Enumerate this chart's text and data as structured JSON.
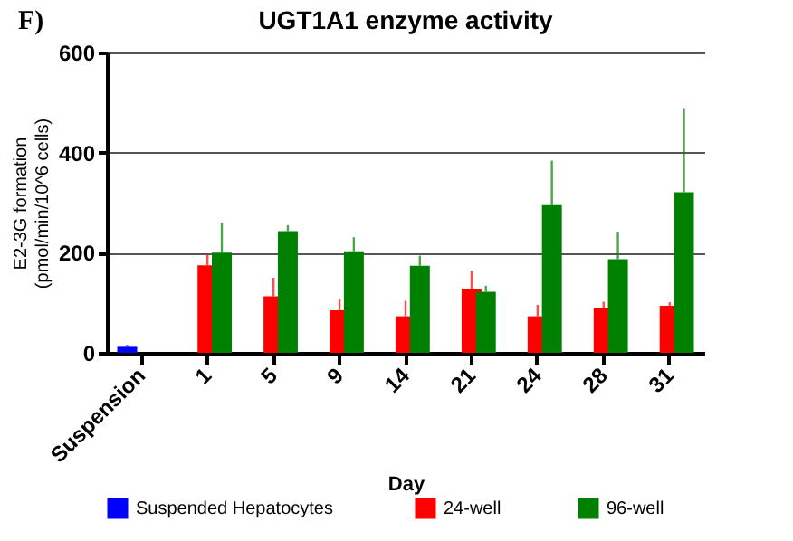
{
  "chart_data": {
    "type": "bar",
    "title": "UGT1A1 enzyme activity",
    "xlabel": "Day",
    "ylabel": "E2-3G formation\n(pmol/min/10^6 cells)",
    "annotations": [
      "F)"
    ],
    "categories": [
      "Suspension",
      "1",
      "5",
      "9",
      "14",
      "21",
      "24",
      "28",
      "31"
    ],
    "series": [
      {
        "name": "Suspended  Hepatocytes",
        "color": "#0000ff",
        "values": [
          12,
          null,
          null,
          null,
          null,
          null,
          null,
          null,
          null
        ],
        "errors": [
          [
            12,
            16
          ],
          null,
          null,
          null,
          null,
          null,
          null,
          null,
          null
        ]
      },
      {
        "name": "24-well",
        "color": "#ff0000",
        "values": [
          null,
          175,
          113,
          85,
          73,
          128,
          73,
          90,
          94
        ],
        "errors": [
          null,
          [
            175,
            196
          ],
          [
            113,
            150
          ],
          [
            85,
            108
          ],
          [
            73,
            104
          ],
          [
            128,
            164
          ],
          [
            73,
            96
          ],
          [
            90,
            102
          ],
          [
            94,
            101
          ]
        ]
      },
      {
        "name": "96-well",
        "color": "#008000",
        "values": [
          null,
          200,
          243,
          203,
          174,
          122,
          295,
          187,
          321
        ],
        "errors": [
          null,
          [
            200,
            260
          ],
          [
            243,
            255
          ],
          [
            203,
            231
          ],
          [
            174,
            194
          ],
          [
            122,
            134
          ],
          [
            295,
            384
          ],
          [
            187,
            242
          ],
          [
            321,
            489
          ]
        ]
      }
    ],
    "ylim": [
      0,
      600
    ],
    "yticks": [
      0,
      200,
      400,
      600
    ],
    "grid": "y",
    "legend": "bottom"
  }
}
